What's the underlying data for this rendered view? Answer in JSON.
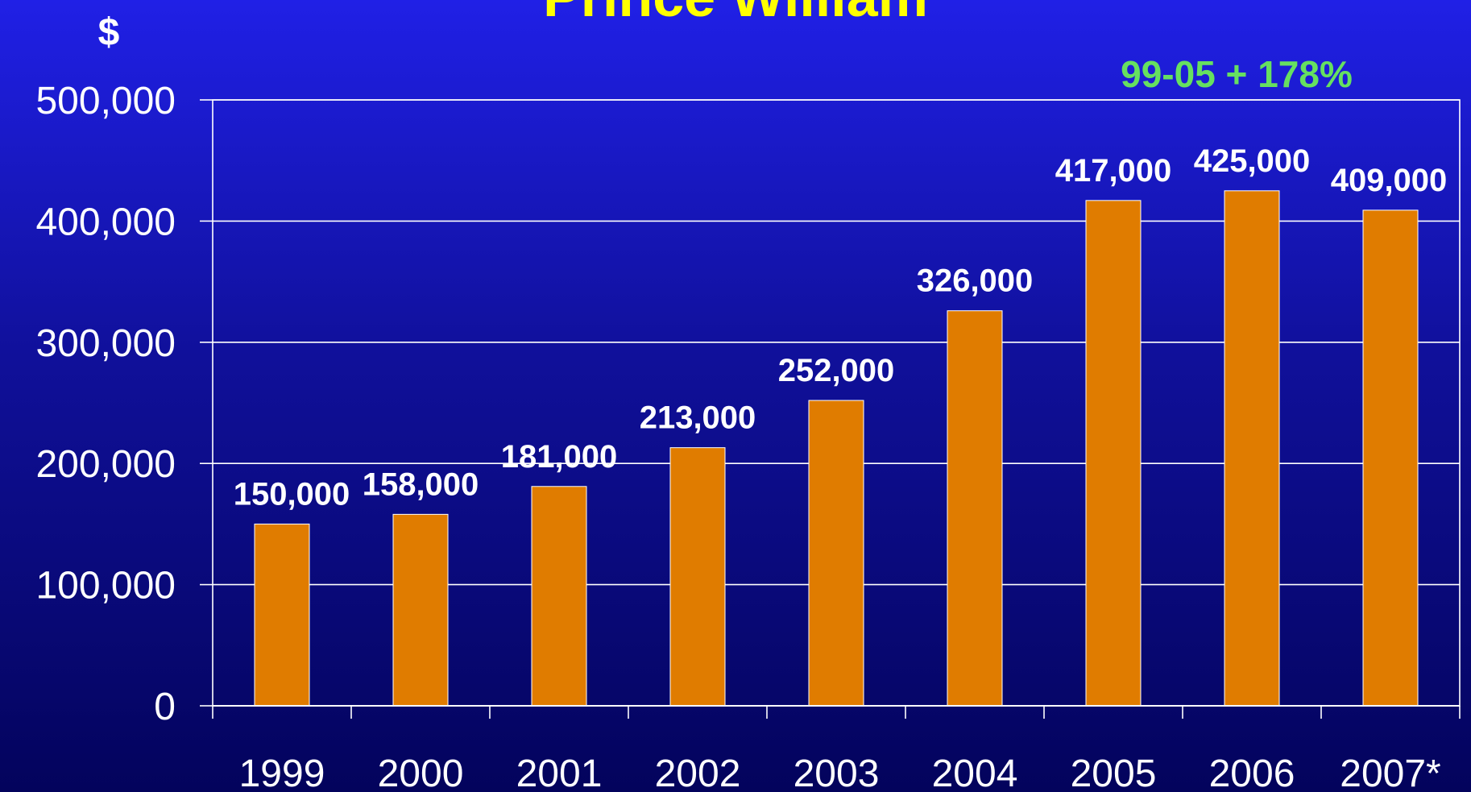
{
  "chart_data": {
    "type": "bar",
    "title": "Prince William",
    "y_unit": "$",
    "annotation": "99-05 + 178%",
    "categories": [
      "1999",
      "2000",
      "2001",
      "2002",
      "2003",
      "2004",
      "2005",
      "2006",
      "2007*"
    ],
    "values": [
      150000,
      158000,
      181000,
      213000,
      252000,
      326000,
      417000,
      425000,
      409000
    ],
    "data_labels": [
      "150,000",
      "158,000",
      "181,000",
      "213,000",
      "252,000",
      "326,000",
      "417,000",
      "425,000",
      "409,000"
    ],
    "yticks": [
      0,
      100000,
      200000,
      300000,
      400000,
      500000
    ],
    "ytick_labels": [
      "0",
      "100,000",
      "200,000",
      "300,000",
      "400,000",
      "500,000"
    ],
    "ylim": [
      0,
      500000
    ],
    "grid": true,
    "colors": {
      "bar": "#e07c00",
      "title": "#ffff00",
      "annotation": "#66e060",
      "text": "#ffffff",
      "grid": "#ffffff"
    }
  }
}
